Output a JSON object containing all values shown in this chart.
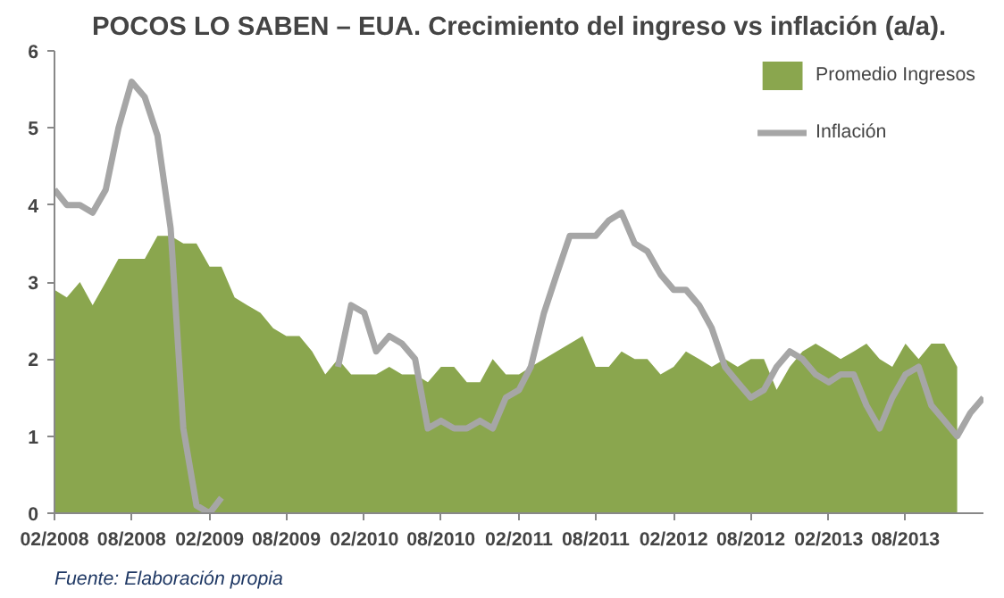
{
  "chart_data": {
    "type": "area",
    "title": "POCOS LO SABEN – EUA. Crecimiento del ingreso vs inflación (a/a).",
    "annotations": [
      "Fuente: Elaboración propia"
    ],
    "x": [
      "2008-02",
      "2008-03",
      "2008-04",
      "2008-05",
      "2008-06",
      "2008-07",
      "2008-08",
      "2008-09",
      "2008-10",
      "2008-11",
      "2008-12",
      "2009-01",
      "2009-02",
      "2009-03",
      "2009-04",
      "2009-05",
      "2009-06",
      "2009-07",
      "2009-08",
      "2009-09",
      "2009-10",
      "2009-11",
      "2009-12",
      "2010-01",
      "2010-02",
      "2010-03",
      "2010-04",
      "2010-05",
      "2010-06",
      "2010-07",
      "2010-08",
      "2010-09",
      "2010-10",
      "2010-11",
      "2010-12",
      "2011-01",
      "2011-02",
      "2011-03",
      "2011-04",
      "2011-05",
      "2011-06",
      "2011-07",
      "2011-08",
      "2011-09",
      "2011-10",
      "2011-11",
      "2011-12",
      "2012-01",
      "2012-02",
      "2012-03",
      "2012-04",
      "2012-05",
      "2012-06",
      "2012-07",
      "2012-08",
      "2012-09",
      "2012-10",
      "2012-11",
      "2012-12",
      "2013-01",
      "2013-02",
      "2013-03",
      "2013-04",
      "2013-05",
      "2013-06",
      "2013-07",
      "2013-08",
      "2013-09",
      "2013-10",
      "2013-11",
      "2013-12",
      "2014-01",
      "2014-02"
    ],
    "series": [
      {
        "name": "Promedio Ingresos",
        "color": "#8aa64e",
        "values": [
          2.9,
          2.8,
          3.0,
          2.7,
          3.0,
          3.3,
          3.3,
          3.3,
          3.6,
          3.6,
          3.5,
          3.5,
          3.2,
          3.2,
          2.8,
          2.7,
          2.6,
          2.4,
          2.3,
          2.3,
          2.1,
          1.8,
          2.0,
          1.8,
          1.8,
          1.8,
          1.9,
          1.8,
          1.8,
          1.7,
          1.9,
          1.9,
          1.7,
          1.7,
          2.0,
          1.8,
          1.8,
          1.9,
          2.0,
          2.1,
          2.2,
          2.3,
          1.9,
          1.9,
          2.1,
          2.0,
          2.0,
          1.8,
          1.9,
          2.1,
          2.0,
          1.9,
          2.0,
          1.9,
          2.0,
          2.0,
          1.6,
          1.9,
          2.1,
          2.2,
          2.1,
          2.0,
          2.1,
          2.2,
          2.0,
          1.9,
          2.2,
          2.0,
          2.2,
          2.2,
          1.9,
          null,
          null
        ]
      },
      {
        "name": "Inflación",
        "type": "line",
        "color": "#a6a6a6",
        "values": [
          4.2,
          4.0,
          4.0,
          3.9,
          4.2,
          5.0,
          5.6,
          5.4,
          4.9,
          3.7,
          1.1,
          0.1,
          0.0,
          0.2,
          null,
          null,
          null,
          null,
          null,
          null,
          null,
          null,
          1.9,
          2.7,
          2.6,
          2.1,
          2.3,
          2.2,
          2.0,
          1.1,
          1.2,
          1.1,
          1.1,
          1.2,
          1.1,
          1.5,
          1.6,
          1.9,
          2.6,
          3.1,
          3.6,
          3.6,
          3.6,
          3.8,
          3.9,
          3.5,
          3.4,
          3.1,
          2.9,
          2.9,
          2.7,
          2.4,
          1.9,
          1.7,
          1.5,
          1.6,
          1.9,
          2.1,
          2.0,
          1.8,
          1.7,
          1.8,
          1.8,
          1.4,
          1.1,
          1.5,
          1.8,
          1.9,
          1.4,
          1.2,
          1.0,
          1.3,
          1.5
        ]
      }
    ],
    "xlim": [
      "2008-02",
      "2014-02"
    ],
    "xticks": [
      {
        "value": "2008-02",
        "label": "02/2008"
      },
      {
        "value": "2008-08",
        "label": "08/2008"
      },
      {
        "value": "2009-02",
        "label": "02/2009"
      },
      {
        "value": "2009-08",
        "label": "08/2009"
      },
      {
        "value": "2010-02",
        "label": "02/2010"
      },
      {
        "value": "2010-08",
        "label": "08/2010"
      },
      {
        "value": "2011-02",
        "label": "02/2011"
      },
      {
        "value": "2011-08",
        "label": "08/2011"
      },
      {
        "value": "2012-02",
        "label": "02/2012"
      },
      {
        "value": "2012-08",
        "label": "08/2012"
      },
      {
        "value": "2013-02",
        "label": "02/2013"
      },
      {
        "value": "2013-08",
        "label": "08/2013"
      }
    ],
    "ylim": [
      0,
      6
    ],
    "yticks": [
      0,
      1,
      2,
      3,
      4,
      5,
      6
    ],
    "grid": false,
    "legend": "top right",
    "line_style": "solid",
    "marker": "none"
  }
}
